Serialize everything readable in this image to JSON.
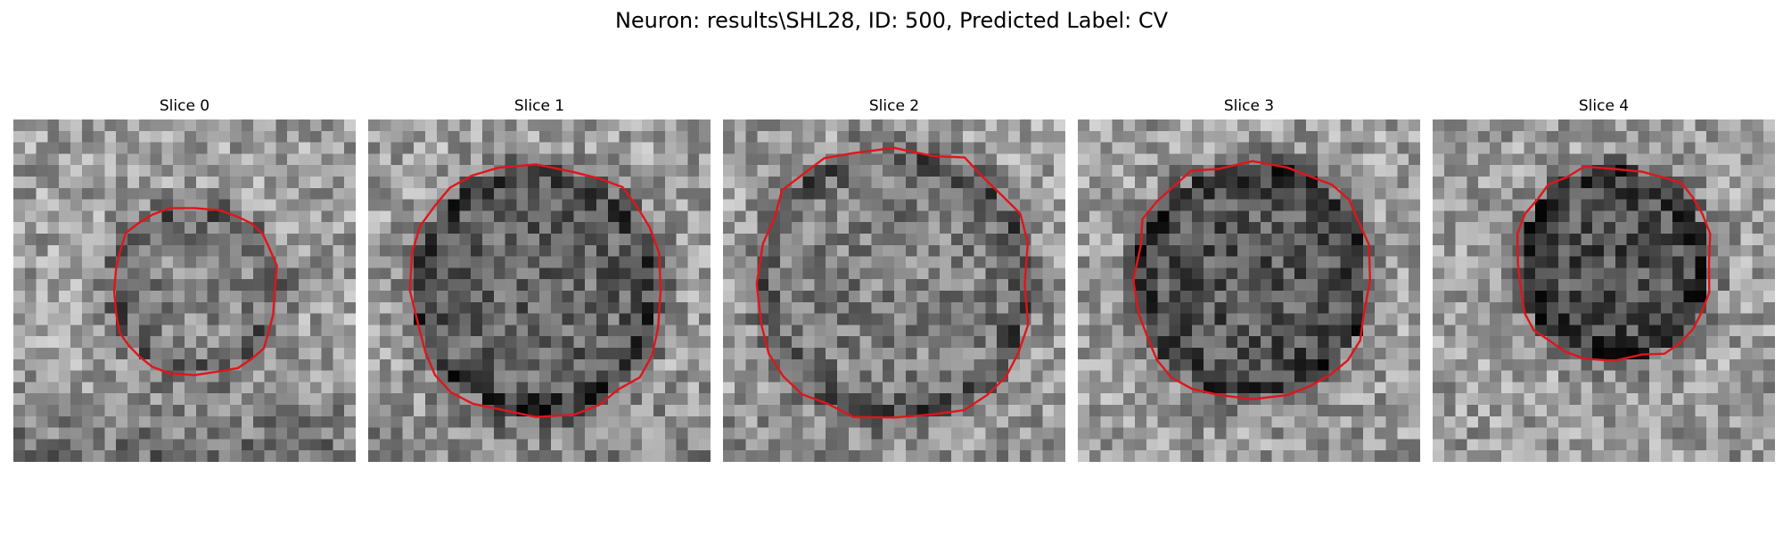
{
  "figure": {
    "title": "Neuron: results\\SHL28, ID: 500, Predicted Label: CV",
    "contour_color": "#e0151b"
  },
  "panels": [
    {
      "title": "Slice 0",
      "contour_radius": 0.24,
      "contour_cx": 0.53,
      "contour_cy": 0.5,
      "darkness": 0.1,
      "lower_shadow": 0.55,
      "seed": 11
    },
    {
      "title": "Slice 1",
      "contour_radius": 0.36,
      "contour_cx": 0.49,
      "contour_cy": 0.5,
      "darkness": 0.22,
      "lower_shadow": 0.3,
      "seed": 23
    },
    {
      "title": "Slice 2",
      "contour_radius": 0.39,
      "contour_cx": 0.5,
      "contour_cy": 0.48,
      "darkness": 0.12,
      "lower_shadow": 0.2,
      "seed": 37
    },
    {
      "title": "Slice 3",
      "contour_radius": 0.34,
      "contour_cx": 0.51,
      "contour_cy": 0.47,
      "darkness": 0.28,
      "lower_shadow": 0.1,
      "seed": 41
    },
    {
      "title": "Slice 4",
      "contour_radius": 0.28,
      "contour_cx": 0.53,
      "contour_cy": 0.42,
      "darkness": 0.3,
      "lower_shadow": 0.05,
      "seed": 53
    }
  ]
}
